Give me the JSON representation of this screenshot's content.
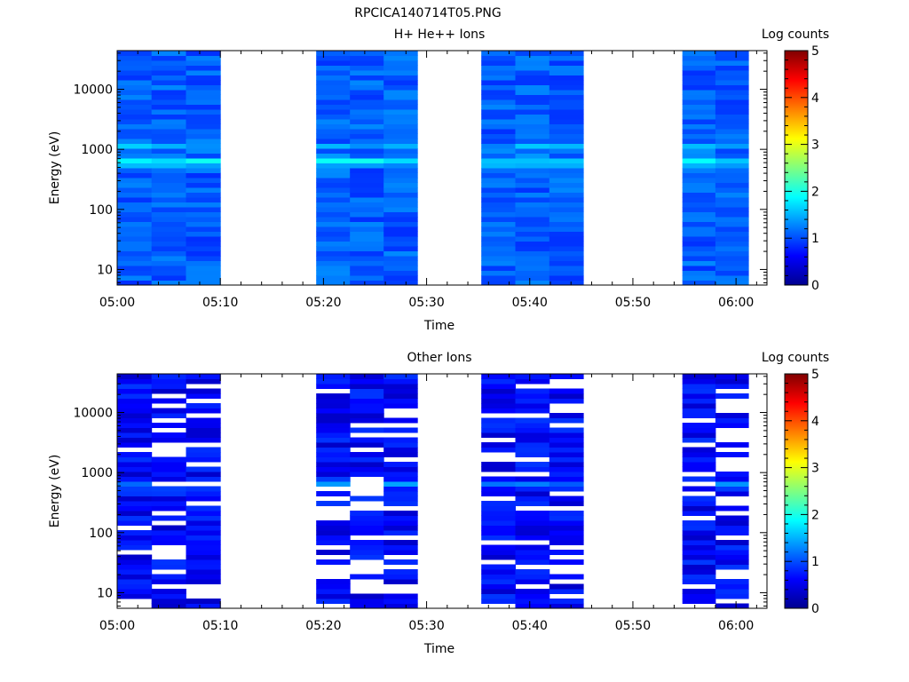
{
  "figure": {
    "title": "RPCICA140714T05.PNG"
  },
  "chart_data": [
    {
      "type": "heatmap",
      "title": "H+ He++ Ions",
      "xlabel": "Time",
      "ylabel": "Energy (eV)",
      "x_tick_labels": [
        "05:00",
        "05:10",
        "05:20",
        "05:30",
        "05:40",
        "05:50",
        "06:00"
      ],
      "y_tick_labels": [
        "10",
        "100",
        "1000",
        "10000"
      ],
      "y_scale": "log",
      "y_range_eV": [
        5.5,
        44000
      ],
      "x_range_min": [
        0,
        63
      ],
      "colorbar": {
        "label": "Log counts",
        "range": [
          0,
          5
        ],
        "tick_labels": [
          "0",
          "1",
          "2",
          "3",
          "4",
          "5"
        ]
      },
      "data_segments_min": [
        [
          0,
          10
        ],
        [
          19.3,
          29.1
        ],
        [
          35.3,
          45.2
        ],
        [
          54.8,
          61.2
        ]
      ]
    },
    {
      "type": "heatmap",
      "title": "Other Ions",
      "xlabel": "Time",
      "ylabel": "Energy (eV)",
      "x_tick_labels": [
        "05:00",
        "05:10",
        "05:20",
        "05:30",
        "05:40",
        "05:50",
        "06:00"
      ],
      "y_tick_labels": [
        "10",
        "100",
        "1000",
        "10000"
      ],
      "y_scale": "log",
      "y_range_eV": [
        5.5,
        44000
      ],
      "x_range_min": [
        0,
        63
      ],
      "colorbar": {
        "label": "Log counts",
        "range": [
          0,
          5
        ],
        "tick_labels": [
          "0",
          "1",
          "2",
          "3",
          "4",
          "5"
        ]
      },
      "data_segments_min": [
        [
          0,
          10
        ],
        [
          19.3,
          29.1
        ],
        [
          35.3,
          45.2
        ],
        [
          54.8,
          61.2
        ]
      ]
    }
  ]
}
